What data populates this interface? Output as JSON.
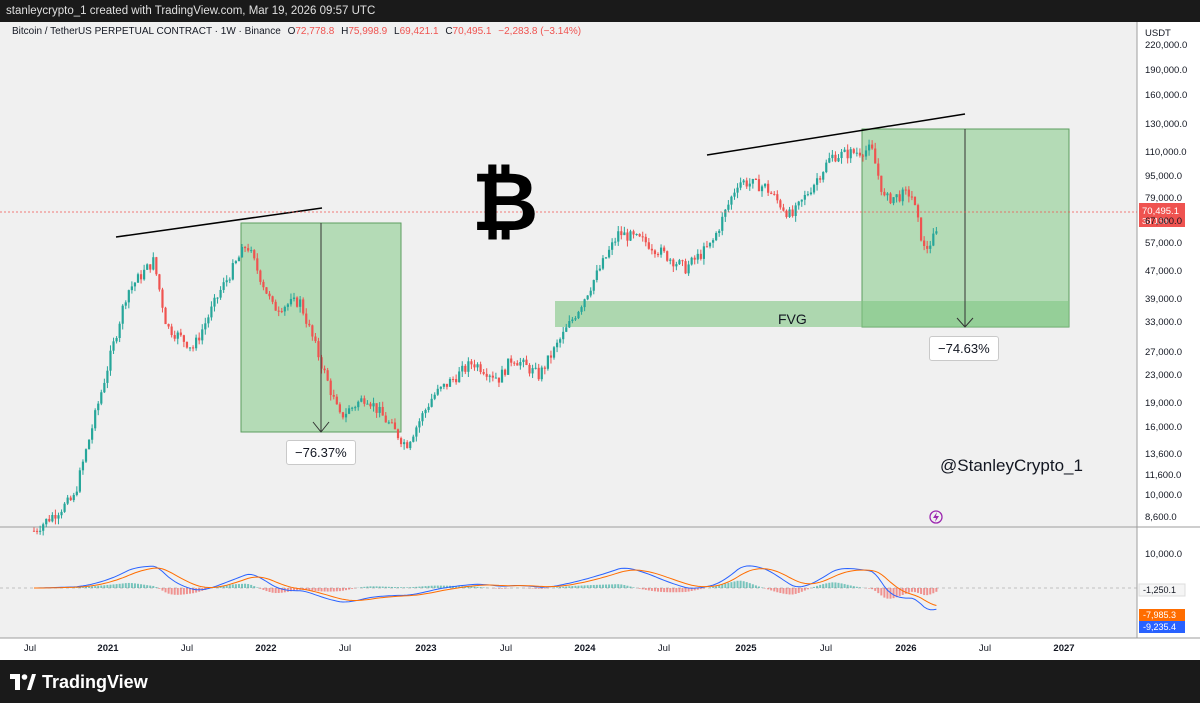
{
  "header": {
    "credit": "stanleycrypto_1 created with TradingView.com, Mar 19, 2026 09:57 UTC"
  },
  "symbol": {
    "name": "Bitcoin / TetherUS PERPETUAL CONTRACT · 1W · Binance",
    "open_label": "O",
    "open": "72,778.8",
    "high_label": "H",
    "high": "75,998.9",
    "low_label": "L",
    "low": "69,421.1",
    "close_label": "C",
    "close": "70,495.1",
    "change": "−2,283.8 (−3.14%)"
  },
  "currency": "USDT",
  "watermark": "@StanleyCrypto_1",
  "brand": "TradingView",
  "colors": {
    "up": "#26a69a",
    "down": "#ef5350",
    "zone": "#a5d6a7",
    "macd": "#2962ff",
    "signal": "#ff6d00"
  },
  "chart_data": {
    "type": "candlestick",
    "timeframe": "1W",
    "y_scale": "log",
    "y_ticks": [
      "220,000.0",
      "190,000.0",
      "160,000.0",
      "130,000.0",
      "110,000.0",
      "95,000.0",
      "79,000.0",
      "67,000.0",
      "57,000.0",
      "47,000.0",
      "39,000.0",
      "33,000.0",
      "27,000.0",
      "23,000.0",
      "19,000.0",
      "16,000.0",
      "13,600.0",
      "11,600.0",
      "10,000.0",
      "8,600.0"
    ],
    "x_ticks": [
      "Jul",
      "2021",
      "Jul",
      "2022",
      "Jul",
      "2023",
      "Jul",
      "2024",
      "Jul",
      "2025",
      "Jul",
      "2026",
      "Jul",
      "2027"
    ],
    "price_path": [
      {
        "t": "2020-07",
        "p": 9200
      },
      {
        "t": "2020-10",
        "p": 11500
      },
      {
        "t": "2021-01",
        "p": 33000
      },
      {
        "t": "2021-02",
        "p": 47000
      },
      {
        "t": "2021-04",
        "p": 58000
      },
      {
        "t": "2021-05",
        "p": 37000
      },
      {
        "t": "2021-07",
        "p": 32000
      },
      {
        "t": "2021-09",
        "p": 47000
      },
      {
        "t": "2021-11",
        "p": 65000
      },
      {
        "t": "2022-01",
        "p": 42000
      },
      {
        "t": "2022-03",
        "p": 44000
      },
      {
        "t": "2022-06",
        "p": 20000
      },
      {
        "t": "2022-08",
        "p": 23000
      },
      {
        "t": "2022-11",
        "p": 16500
      },
      {
        "t": "2023-01",
        "p": 23000
      },
      {
        "t": "2023-04",
        "p": 29000
      },
      {
        "t": "2023-06",
        "p": 26000
      },
      {
        "t": "2023-07",
        "p": 30000
      },
      {
        "t": "2023-09",
        "p": 26500
      },
      {
        "t": "2023-12",
        "p": 42000
      },
      {
        "t": "2024-03",
        "p": 70000
      },
      {
        "t": "2024-05",
        "p": 66000
      },
      {
        "t": "2024-08",
        "p": 55000
      },
      {
        "t": "2024-10",
        "p": 65000
      },
      {
        "t": "2024-12",
        "p": 100000
      },
      {
        "t": "2025-02",
        "p": 96000
      },
      {
        "t": "2025-04",
        "p": 78000
      },
      {
        "t": "2025-07",
        "p": 118000
      },
      {
        "t": "2025-10",
        "p": 124000
      },
      {
        "t": "2025-11",
        "p": 88000
      },
      {
        "t": "2026-01",
        "p": 92000
      },
      {
        "t": "2026-02",
        "p": 62000
      },
      {
        "t": "2026-03",
        "p": 70495
      }
    ],
    "annotations": [
      {
        "type": "measure",
        "value": "−76.37%"
      },
      {
        "type": "measure",
        "value": "−74.63%"
      },
      {
        "type": "zone",
        "label": "FVG",
        "low": 32000,
        "high": 38500
      }
    ],
    "last_price": {
      "value": "70,495.1",
      "countdown": "3d 15h"
    },
    "macd": {
      "axis_ticks": [
        "10,000.0",
        "-1,250.1"
      ],
      "last": {
        "zero_line": "-1,250.1",
        "signal": "-7,985.3",
        "macd": "-9,235.4"
      }
    }
  }
}
